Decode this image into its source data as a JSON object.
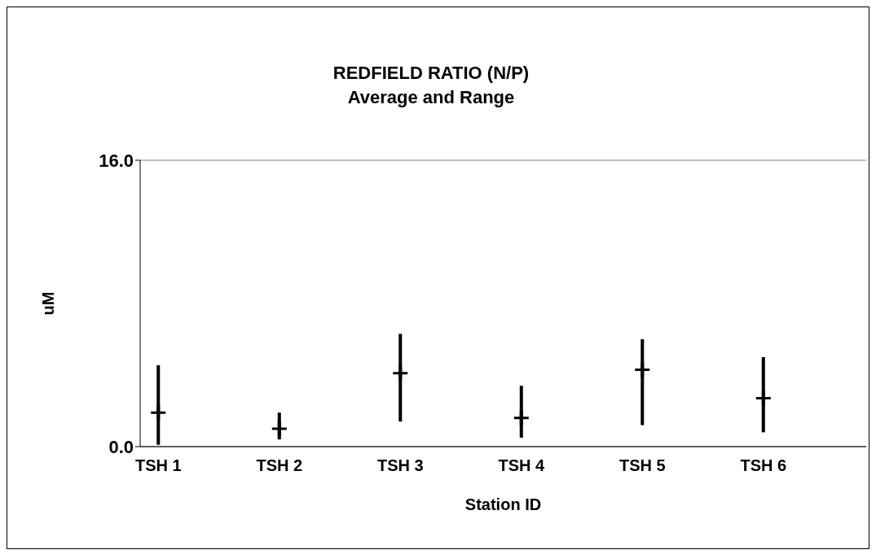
{
  "chart_data": {
    "type": "scatter",
    "title": "REDFIELD RATIO (N/P)",
    "subtitle": "Average and Range",
    "xlabel": "Station ID",
    "ylabel": "uM",
    "categories": [
      "TSH 1",
      "TSH 2",
      "TSH 3",
      "TSH 4",
      "TSH 5",
      "TSH 6"
    ],
    "values": [
      1.9,
      1.0,
      4.1,
      1.6,
      4.3,
      2.7
    ],
    "errors": [
      [
        0.1,
        4.55
      ],
      [
        0.4,
        1.9
      ],
      [
        1.4,
        6.3
      ],
      [
        0.5,
        3.4
      ],
      [
        1.2,
        6.0
      ],
      [
        0.8,
        5.0
      ]
    ],
    "color": "#000000",
    "marker": "cross",
    "ylim": [
      0,
      16
    ],
    "yticks": [
      {
        "value": 0,
        "label": "0.0"
      },
      {
        "value": 16,
        "label": "16.0"
      }
    ],
    "grid": "y"
  }
}
